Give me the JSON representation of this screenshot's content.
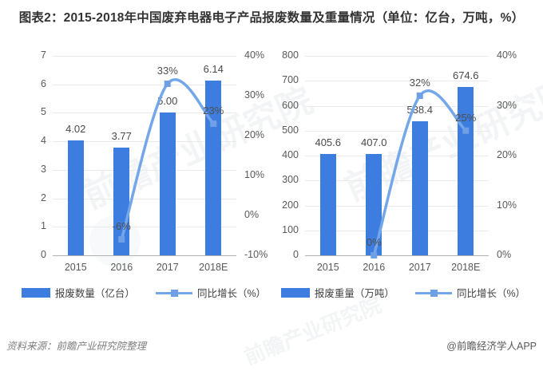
{
  "title": "图表2：2015-2018年中国废弃电器电子产品报废数量及重量情况（单位：亿台，万吨，%）",
  "footer": {
    "source": "资料来源：前瞻产业研究院整理",
    "credit": "@前瞻经济学人APP"
  },
  "watermark_text": "前瞻产业研究院",
  "colors": {
    "bar": "#3d7de0",
    "line": "#74a7ea",
    "marker": "#6fa0e6",
    "grid": "#eaeaea",
    "axis": "#b0b0b0"
  },
  "chart_data": [
    {
      "type": "bar",
      "categories": [
        "2015",
        "2016",
        "2017",
        "2018E"
      ],
      "series": [
        {
          "name": "报废数量（亿台）",
          "type": "bar",
          "axis": "left",
          "values": [
            4.02,
            3.77,
            5.0,
            6.14
          ],
          "labels": [
            "4.02",
            "3.77",
            "5.00",
            "6.14"
          ]
        },
        {
          "name": "同比增长（%）",
          "type": "line",
          "axis": "right",
          "values": [
            null,
            -6,
            33,
            23
          ],
          "labels": [
            null,
            "-6%",
            "33%",
            "23%"
          ]
        }
      ],
      "left_axis": {
        "min": 0,
        "max": 7,
        "ticks": [
          "7",
          "6",
          "5",
          "4",
          "3",
          "2",
          "1",
          "0"
        ]
      },
      "right_axis": {
        "min": -10,
        "max": 40,
        "ticks": [
          "40%",
          "30%",
          "20%",
          "10%",
          "0%",
          "-10%"
        ]
      },
      "legend": [
        "报废数量（亿台）",
        "同比增长（%）"
      ],
      "grid": true,
      "legend_position": "bottom"
    },
    {
      "type": "bar",
      "categories": [
        "2015",
        "2016",
        "2017",
        "2018E"
      ],
      "series": [
        {
          "name": "报废重量（万吨）",
          "type": "bar",
          "axis": "left",
          "values": [
            405.6,
            407.0,
            538.4,
            674.6
          ],
          "labels": [
            "405.6",
            "407.0",
            "538.4",
            "674.6"
          ]
        },
        {
          "name": "同比增长（%）",
          "type": "line",
          "axis": "right",
          "values": [
            null,
            0,
            32,
            25
          ],
          "labels": [
            null,
            "0%",
            "32%",
            "25%"
          ]
        }
      ],
      "left_axis": {
        "min": 0,
        "max": 800,
        "ticks": [
          "800",
          "700",
          "600",
          "500",
          "400",
          "300",
          "200",
          "100",
          "0"
        ]
      },
      "right_axis": {
        "min": 0,
        "max": 40,
        "ticks": [
          "40%",
          "30%",
          "20%",
          "10%",
          "0%"
        ]
      },
      "legend": [
        "报废重量（万吨）",
        "同比增长（%）"
      ],
      "grid": true,
      "legend_position": "bottom"
    }
  ]
}
